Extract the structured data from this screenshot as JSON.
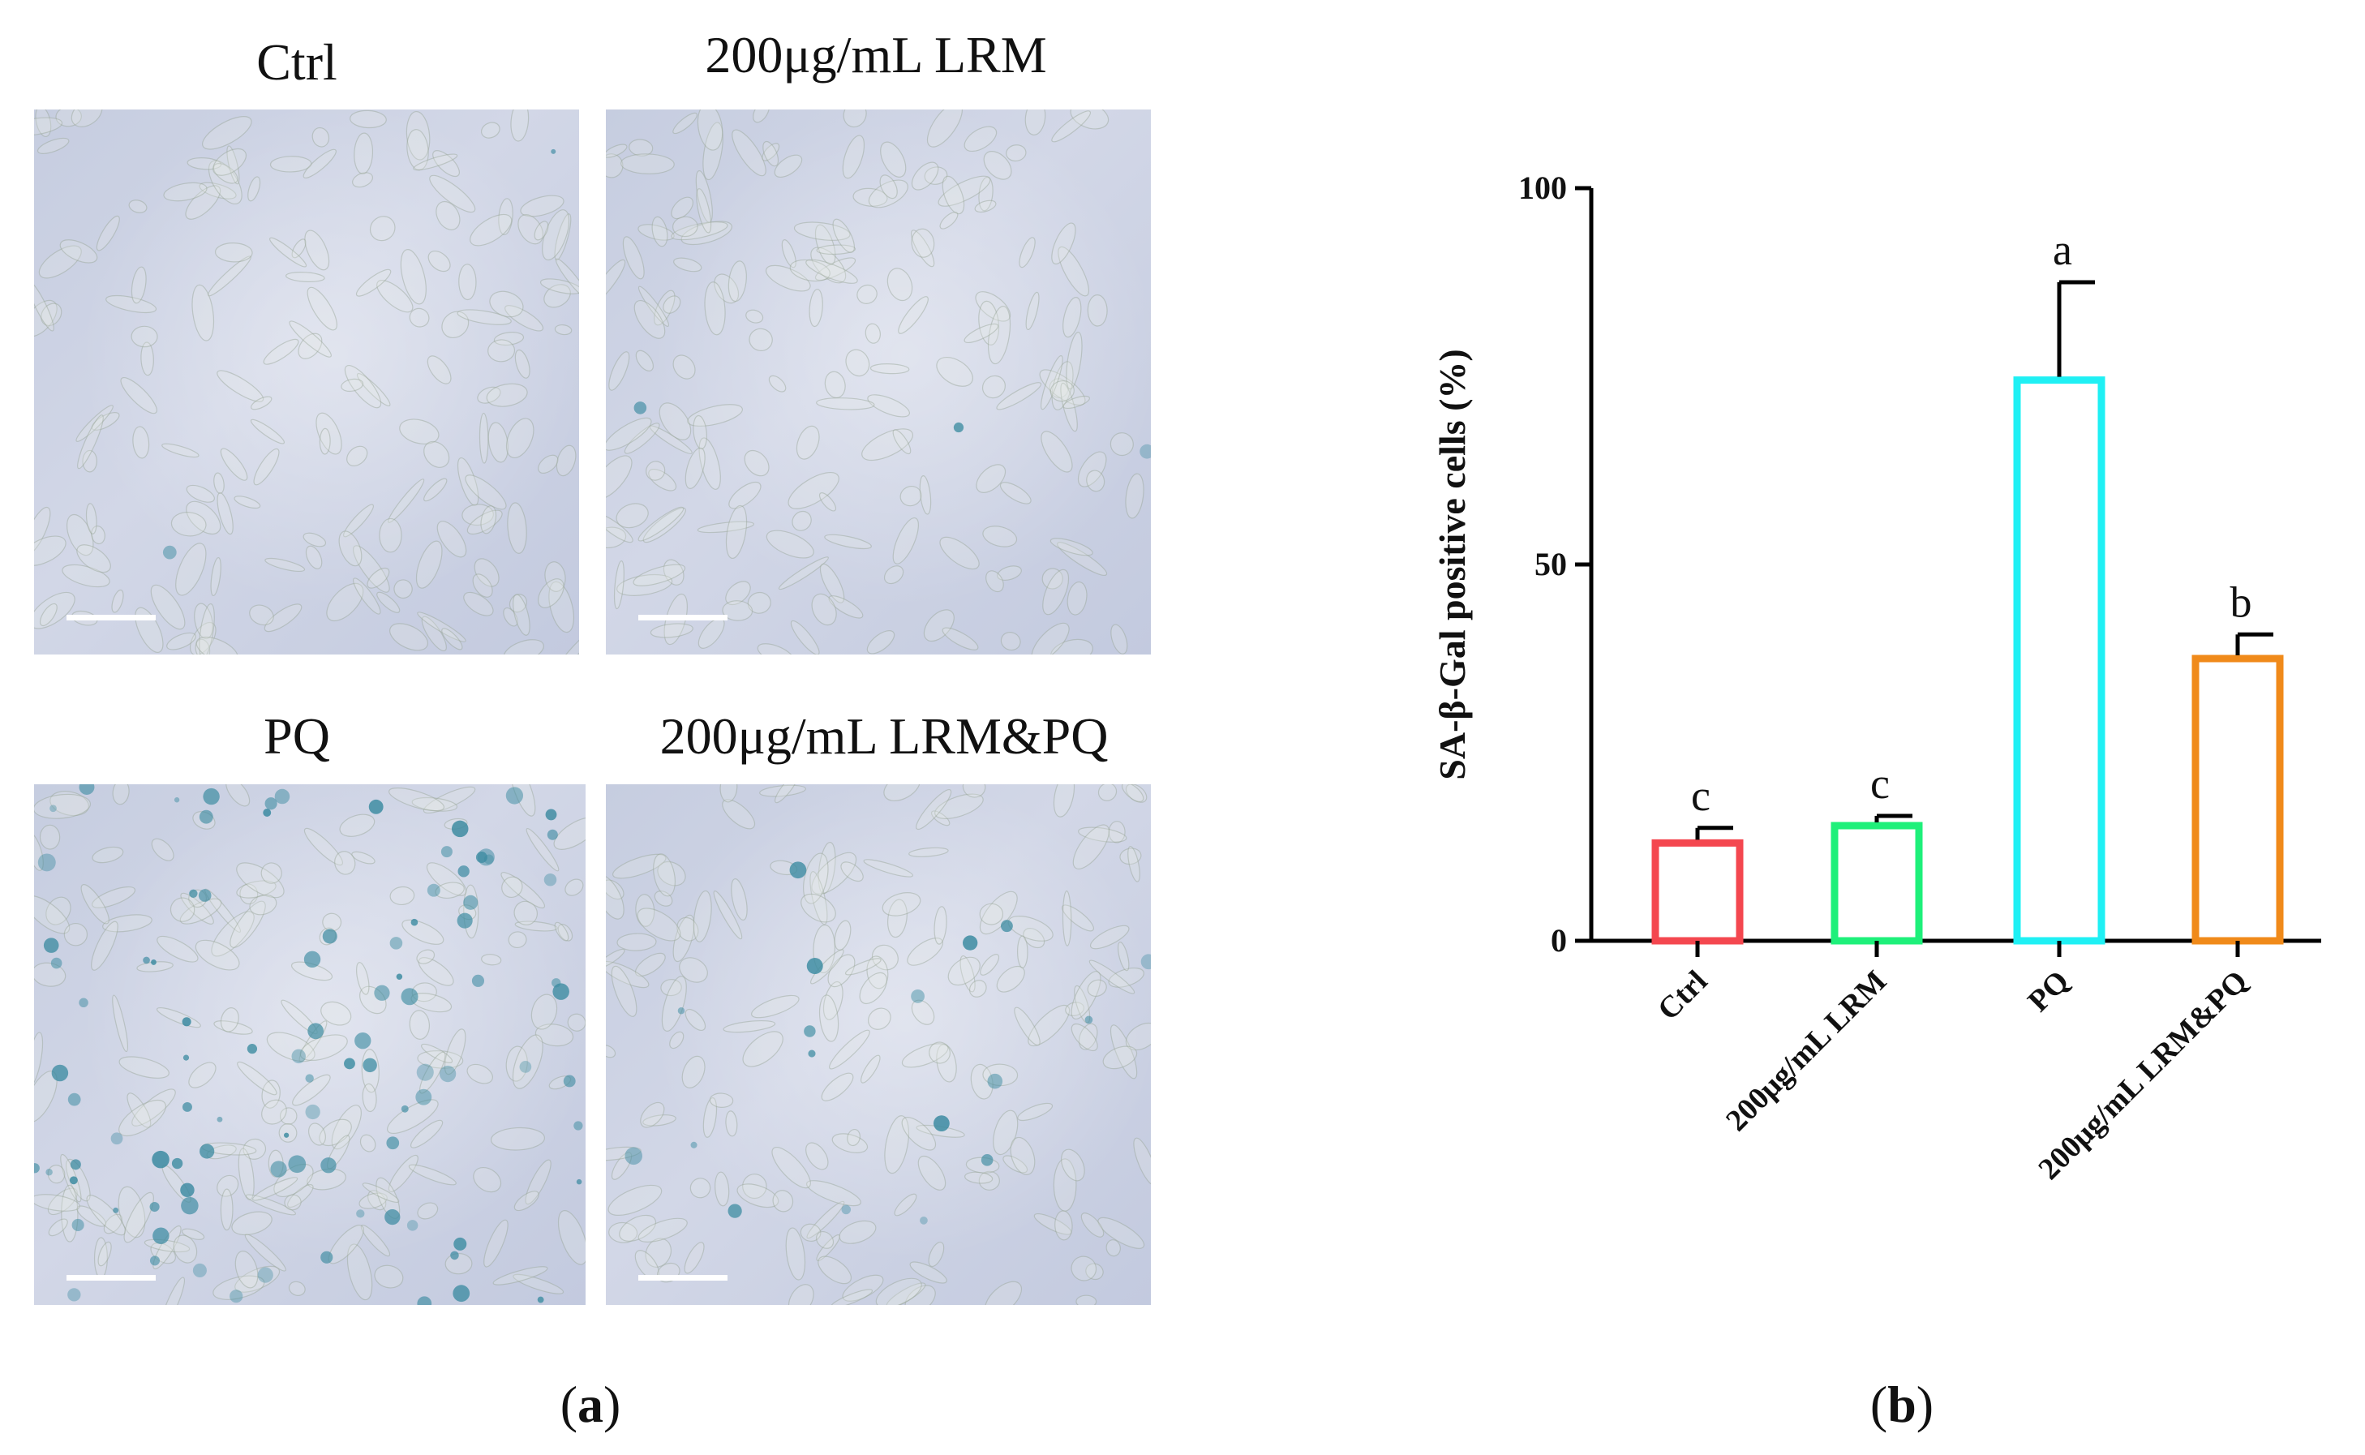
{
  "panel_a": {
    "label_open": "(",
    "label_letter": "a",
    "label_close": ")",
    "images": [
      {
        "title": "Ctrl"
      },
      {
        "title": "200μg/mL LRM"
      },
      {
        "title": "PQ"
      },
      {
        "title": "200μg/mL LRM&PQ"
      }
    ]
  },
  "panel_b": {
    "label_open": "(",
    "label_letter": "b",
    "label_close": ")"
  },
  "colors": {
    "ctrl": "#f4474f",
    "lrm": "#1ef07a",
    "pq": "#1ff0f4",
    "lrm_pq": "#f08a1a",
    "stain": "#3a8aa0",
    "axis": "#000000"
  },
  "chart_data": {
    "type": "bar",
    "categories": [
      "Ctrl",
      "200μg/mL LRM",
      "PQ",
      "200μg/mL LRM&PQ"
    ],
    "values": [
      13,
      15.3,
      74.5,
      37.5
    ],
    "error_upper": [
      2,
      1.3,
      13,
      3.2
    ],
    "significance": [
      "c",
      "c",
      "a",
      "b"
    ],
    "title": "",
    "xlabel": "",
    "ylabel": "SA-β-Gal positive cells (%)",
    "ylim": [
      0,
      100
    ],
    "yticks": [
      0,
      50,
      100
    ],
    "grid": false,
    "legend": "none"
  }
}
